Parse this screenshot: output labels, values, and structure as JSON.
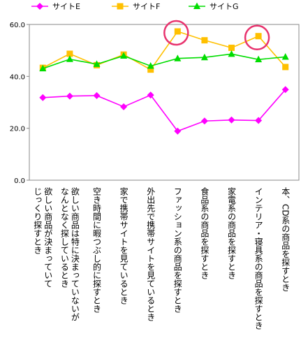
{
  "chart_data": {
    "type": "line",
    "categories": [
      "欲しい商品が決まっていてじっくり探すとき",
      "欲しい商品は特に決まっていないがなんとなく探しているとき",
      "空き時間に暇つぶし的に探すとき",
      "家で携帯サイトを見ているとき",
      "外出先で携帯サイトを見ているとき",
      "ファッション系の商品を探すとき",
      "食品系の商品を探すとき",
      "家電系の商品を探すとき",
      "インテリア・寝具系の商品を探すとき",
      "本、CD系の商品を探すとき"
    ],
    "category_lines": [
      [
        "欲しい商品が決まっていて",
        "じっくり探すとき"
      ],
      [
        "欲しい商品は特に決まっていないが",
        "なんとなく探しているとき"
      ],
      [
        "空き時間に暇つぶし的に探すとき"
      ],
      [
        "家で携帯サイトを見ているとき"
      ],
      [
        "外出先で携帯サイトを見ているとき"
      ],
      [
        "ファッション系の商品を探すとき"
      ],
      [
        "食品系の商品を探すとき"
      ],
      [
        "家電系の商品を探すとき"
      ],
      [
        "インテリア・寝具系の商品を探すとき"
      ],
      [
        "本、CD系の商品を探すとき"
      ]
    ],
    "series": [
      {
        "name": "サイトE",
        "color": "#ff00ff",
        "marker": "diamond",
        "values": [
          31.8,
          32.4,
          32.6,
          28.3,
          32.8,
          18.9,
          22.8,
          23.2,
          23.0,
          34.9
        ]
      },
      {
        "name": "サイトF",
        "color": "#ffc000",
        "marker": "square",
        "values": [
          43.3,
          48.7,
          44.3,
          48.4,
          42.6,
          57.3,
          53.9,
          51.0,
          55.5,
          43.6
        ]
      },
      {
        "name": "サイトG",
        "color": "#00dd00",
        "marker": "triangle",
        "values": [
          43.0,
          46.6,
          44.7,
          47.9,
          44.0,
          46.9,
          47.3,
          48.6,
          46.5,
          47.5
        ]
      }
    ],
    "yticks": [
      "0.0",
      "20.0",
      "40.0",
      "60.0"
    ],
    "ylim": [
      0,
      60
    ],
    "grid": false,
    "legend": "top",
    "highlight_circles": [
      {
        "category_index": 5,
        "series": "サイトF",
        "color": "#e8336e"
      },
      {
        "category_index": 8,
        "series": "サイトF",
        "color": "#e8336e"
      }
    ]
  }
}
